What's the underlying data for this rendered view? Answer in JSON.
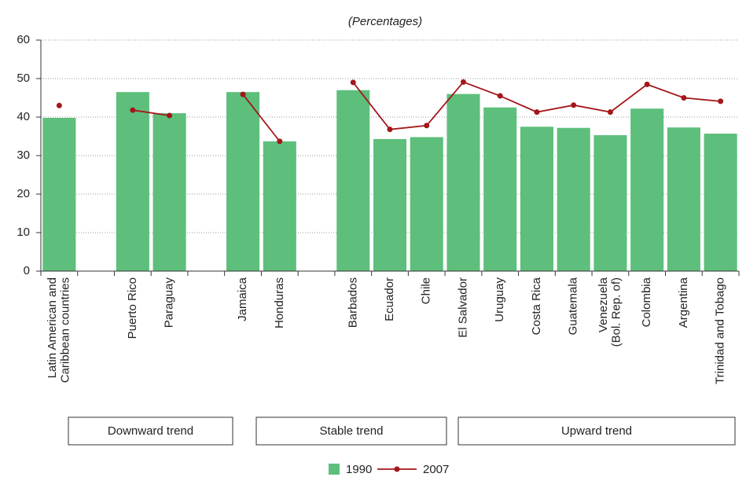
{
  "chart_data": {
    "type": "bar",
    "subtitle": "(Percentages)",
    "categories": [
      "Latin American and Caribbean countries",
      null,
      "Puerto Rico",
      "Paraguay",
      null,
      "Jamaica",
      "Honduras",
      null,
      "Barbados",
      "Ecuador",
      "Chile",
      "El Salvador",
      "Uruguay",
      "Costa Rica",
      "Guatemala",
      "Venezuela (Bol. Rep. of)",
      "Colombia",
      "Argentina",
      "Trinidad and Tobago"
    ],
    "series": [
      {
        "name": "1990",
        "type": "bar",
        "color": "#5dbf7b",
        "values": [
          39.8,
          null,
          46.5,
          41,
          null,
          46.5,
          33.7,
          null,
          47,
          34.3,
          34.8,
          46,
          42.5,
          37.5,
          37.2,
          35.3,
          42.2,
          37.3,
          35.7
        ]
      },
      {
        "name": "2007",
        "type": "line",
        "color": "#a4161a",
        "values": [
          43,
          null,
          41.8,
          40.4,
          null,
          45.9,
          33.7,
          null,
          49,
          36.8,
          37.8,
          49.1,
          45.5,
          41.3,
          43.1,
          41.3,
          48.5,
          45,
          44.1
        ]
      }
    ],
    "groups": [
      "Downward trend",
      "Stable trend",
      "Upward trend"
    ],
    "ylim": [
      0,
      60
    ],
    "yticks": [
      0,
      10,
      20,
      30,
      40,
      50,
      60
    ],
    "grid": true
  }
}
